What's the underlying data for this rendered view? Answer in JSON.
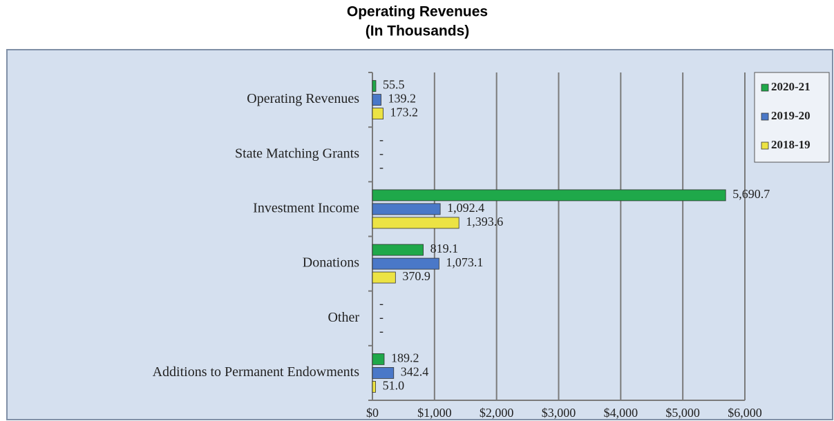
{
  "chart_data": {
    "type": "bar",
    "orientation": "horizontal",
    "title": "Operating Revenues",
    "subtitle": "(In Thousands)",
    "categories": [
      "Operating Revenues",
      "State Matching Grants",
      "Investment Income",
      "Donations",
      "Other",
      "Additions to Permanent Endowments"
    ],
    "series": [
      {
        "name": "2020-21",
        "color": "#1fa84a",
        "values": [
          55.5,
          0,
          5690.7,
          819.1,
          0,
          189.2
        ],
        "value_labels": [
          "55.5",
          "-",
          "5,690.7",
          "819.1",
          "-",
          "189.2"
        ]
      },
      {
        "name": "2019-20",
        "color": "#4a78c8",
        "values": [
          139.2,
          0,
          1092.4,
          1073.1,
          0,
          342.4
        ],
        "value_labels": [
          "139.2",
          "-",
          "1,092.4",
          "1,073.1",
          "-",
          "342.4"
        ]
      },
      {
        "name": "2018-19",
        "color": "#ece344",
        "values": [
          173.2,
          0,
          1393.6,
          370.9,
          0,
          51.0
        ],
        "value_labels": [
          "173.2",
          "-",
          "1,393.6",
          "370.9",
          "-",
          "51.0"
        ]
      }
    ],
    "xlim": [
      0,
      6000
    ],
    "xticks": [
      {
        "value": 0,
        "label": "$0"
      },
      {
        "value": 1000,
        "label": "$1,000"
      },
      {
        "value": 2000,
        "label": "$2,000"
      },
      {
        "value": 3000,
        "label": "$3,000"
      },
      {
        "value": 4000,
        "label": "$4,000"
      },
      {
        "value": 5000,
        "label": "$5,000"
      },
      {
        "value": 6000,
        "label": "$6,000"
      }
    ],
    "grid": true,
    "legend": "top-right"
  }
}
